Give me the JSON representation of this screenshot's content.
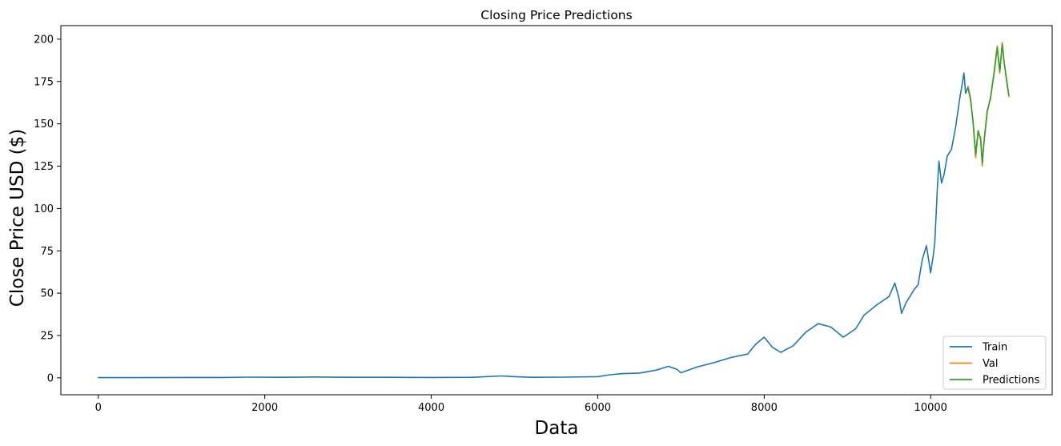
{
  "chart_data": {
    "type": "line",
    "title": "Closing Price Predictions",
    "xlabel": "Data",
    "ylabel": "Close Price USD ($)",
    "xlim": [
      -450,
      11460
    ],
    "ylim": [
      -10,
      208
    ],
    "xticks": [
      0,
      2000,
      4000,
      6000,
      8000,
      10000
    ],
    "yticks": [
      0,
      25,
      50,
      75,
      100,
      125,
      150,
      175,
      200
    ],
    "grid": false,
    "legend_position": "lower-right",
    "series": [
      {
        "name": "Train",
        "color": "#1f77b4",
        "points": [
          [
            0,
            0.1
          ],
          [
            500,
            0.1
          ],
          [
            1000,
            0.2
          ],
          [
            1500,
            0.2
          ],
          [
            1800,
            0.4
          ],
          [
            2200,
            0.3
          ],
          [
            2600,
            0.5
          ],
          [
            3000,
            0.3
          ],
          [
            3500,
            0.3
          ],
          [
            4000,
            0.2
          ],
          [
            4500,
            0.3
          ],
          [
            4850,
            1.1
          ],
          [
            5000,
            0.7
          ],
          [
            5200,
            0.3
          ],
          [
            5600,
            0.4
          ],
          [
            6000,
            0.7
          ],
          [
            6150,
            1.8
          ],
          [
            6300,
            2.5
          ],
          [
            6500,
            2.8
          ],
          [
            6700,
            4.5
          ],
          [
            6850,
            6.8
          ],
          [
            6950,
            5.0
          ],
          [
            7000,
            3.0
          ],
          [
            7200,
            6.5
          ],
          [
            7400,
            9.0
          ],
          [
            7600,
            12.0
          ],
          [
            7800,
            14.0
          ],
          [
            7900,
            20.0
          ],
          [
            8000,
            24.0
          ],
          [
            8100,
            18.0
          ],
          [
            8200,
            15.0
          ],
          [
            8350,
            19.0
          ],
          [
            8500,
            27.0
          ],
          [
            8650,
            32.0
          ],
          [
            8800,
            30.0
          ],
          [
            8950,
            24.0
          ],
          [
            9100,
            29.0
          ],
          [
            9200,
            37.0
          ],
          [
            9350,
            43.0
          ],
          [
            9500,
            48.0
          ],
          [
            9570,
            56.0
          ],
          [
            9620,
            47.0
          ],
          [
            9650,
            38.0
          ],
          [
            9700,
            44.0
          ],
          [
            9800,
            52.0
          ],
          [
            9850,
            55.0
          ],
          [
            9900,
            70.0
          ],
          [
            9950,
            78.0
          ],
          [
            10000,
            62.0
          ],
          [
            10030,
            72.0
          ],
          [
            10050,
            80.0
          ],
          [
            10080,
            112.0
          ],
          [
            10100,
            128.0
          ],
          [
            10130,
            115.0
          ],
          [
            10160,
            120.0
          ],
          [
            10200,
            131.0
          ],
          [
            10250,
            135.0
          ],
          [
            10300,
            148.0
          ],
          [
            10350,
            165.0
          ],
          [
            10400,
            180.0
          ],
          [
            10420,
            168.0
          ],
          [
            10450,
            172.0
          ]
        ]
      },
      {
        "name": "Val",
        "color": "#ff7f0e",
        "points": [
          [
            10450,
            172.0
          ],
          [
            10480,
            165.0
          ],
          [
            10510,
            150.0
          ],
          [
            10540,
            130.0
          ],
          [
            10570,
            145.0
          ],
          [
            10600,
            142.0
          ],
          [
            10620,
            125.0
          ],
          [
            10640,
            140.0
          ],
          [
            10680,
            158.0
          ],
          [
            10720,
            165.0
          ],
          [
            10760,
            180.0
          ],
          [
            10800,
            196.0
          ],
          [
            10830,
            180.0
          ],
          [
            10860,
            198.0
          ],
          [
            10880,
            188.0
          ],
          [
            10910,
            176.0
          ],
          [
            10940,
            166.0
          ]
        ]
      },
      {
        "name": "Predictions",
        "color": "#2ca02c",
        "points": [
          [
            10450,
            171.0
          ],
          [
            10480,
            164.0
          ],
          [
            10510,
            151.0
          ],
          [
            10540,
            132.0
          ],
          [
            10570,
            146.0
          ],
          [
            10600,
            141.0
          ],
          [
            10620,
            127.0
          ],
          [
            10640,
            139.0
          ],
          [
            10680,
            157.0
          ],
          [
            10720,
            166.0
          ],
          [
            10760,
            179.0
          ],
          [
            10800,
            195.0
          ],
          [
            10830,
            181.0
          ],
          [
            10860,
            197.0
          ],
          [
            10880,
            187.0
          ],
          [
            10910,
            177.0
          ],
          [
            10940,
            167.0
          ]
        ]
      }
    ]
  }
}
